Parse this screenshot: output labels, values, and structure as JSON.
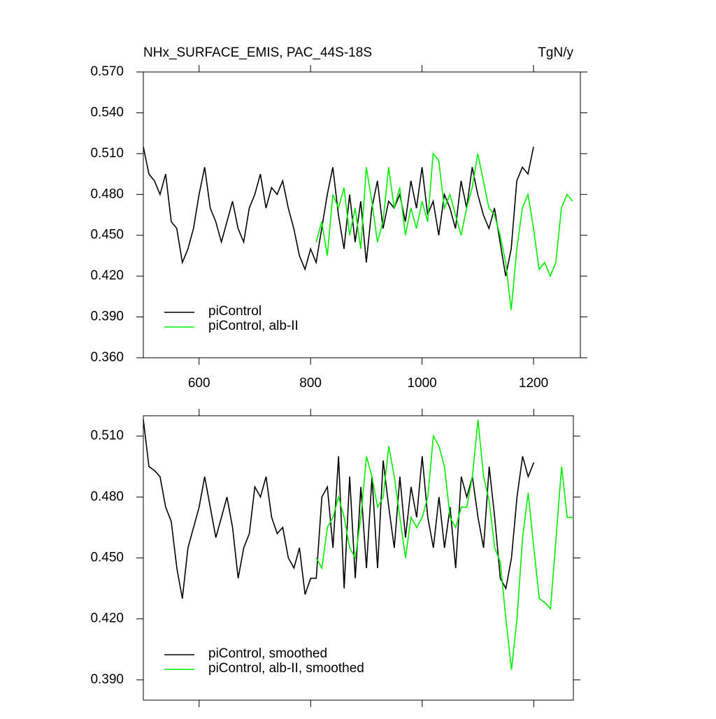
{
  "chart_data": [
    {
      "type": "line",
      "title": "NHx_SURFACE_EMIS, PAC_44S-18S",
      "units": "TgN/y",
      "xlim": [
        500,
        1284
      ],
      "xticks": [
        600,
        800,
        1000,
        1200
      ],
      "ylim": [
        0.36,
        0.57
      ],
      "yticks": [
        {
          "value": 0.36,
          "label": "0.360"
        },
        {
          "value": 0.39,
          "label": "0.390"
        },
        {
          "value": 0.42,
          "label": "0.420"
        },
        {
          "value": 0.45,
          "label": "0.450"
        },
        {
          "value": 0.48,
          "label": "0.480"
        },
        {
          "value": 0.51,
          "label": "0.510"
        },
        {
          "value": 0.54,
          "label": "0.540"
        },
        {
          "value": 0.57,
          "label": "0.570"
        }
      ],
      "legend": "lower left",
      "series": [
        {
          "name": "piControl",
          "color": "#000000",
          "x": [
            500,
            510,
            520,
            530,
            540,
            550,
            560,
            570,
            580,
            590,
            600,
            610,
            620,
            630,
            640,
            650,
            660,
            670,
            680,
            690,
            700,
            710,
            720,
            730,
            740,
            750,
            760,
            770,
            780,
            790,
            800,
            810,
            820,
            830,
            840,
            850,
            860,
            870,
            880,
            890,
            900,
            910,
            920,
            930,
            940,
            950,
            960,
            970,
            980,
            990,
            1000,
            1010,
            1020,
            1030,
            1040,
            1050,
            1060,
            1070,
            1080,
            1090,
            1100,
            1110,
            1120,
            1130,
            1140,
            1150,
            1160,
            1170,
            1180,
            1190,
            1200
          ],
          "values": [
            0.515,
            0.495,
            0.49,
            0.48,
            0.495,
            0.46,
            0.455,
            0.43,
            0.44,
            0.455,
            0.48,
            0.5,
            0.47,
            0.46,
            0.445,
            0.46,
            0.475,
            0.455,
            0.445,
            0.47,
            0.48,
            0.495,
            0.47,
            0.485,
            0.48,
            0.49,
            0.47,
            0.455,
            0.435,
            0.425,
            0.44,
            0.43,
            0.455,
            0.48,
            0.5,
            0.465,
            0.44,
            0.48,
            0.445,
            0.475,
            0.43,
            0.47,
            0.49,
            0.455,
            0.475,
            0.47,
            0.48,
            0.46,
            0.49,
            0.47,
            0.5,
            0.465,
            0.475,
            0.45,
            0.48,
            0.47,
            0.455,
            0.49,
            0.47,
            0.5,
            0.48,
            0.465,
            0.455,
            0.47,
            0.445,
            0.42,
            0.44,
            0.49,
            0.5,
            0.495,
            0.515
          ]
        },
        {
          "name": "piControl, alb-II",
          "color": "#00ee00",
          "x": [
            810,
            820,
            830,
            840,
            850,
            860,
            870,
            880,
            890,
            900,
            910,
            920,
            930,
            940,
            950,
            960,
            970,
            980,
            990,
            1000,
            1010,
            1020,
            1030,
            1040,
            1050,
            1060,
            1070,
            1080,
            1090,
            1100,
            1110,
            1120,
            1130,
            1140,
            1150,
            1160,
            1170,
            1180,
            1190,
            1200,
            1210,
            1220,
            1230,
            1240,
            1250,
            1260,
            1270
          ],
          "values": [
            0.445,
            0.46,
            0.435,
            0.48,
            0.47,
            0.485,
            0.45,
            0.47,
            0.44,
            0.5,
            0.475,
            0.445,
            0.46,
            0.5,
            0.47,
            0.485,
            0.45,
            0.47,
            0.455,
            0.475,
            0.46,
            0.51,
            0.505,
            0.47,
            0.48,
            0.465,
            0.45,
            0.47,
            0.485,
            0.51,
            0.49,
            0.47,
            0.465,
            0.45,
            0.43,
            0.395,
            0.44,
            0.47,
            0.48,
            0.455,
            0.425,
            0.43,
            0.42,
            0.43,
            0.47,
            0.48,
            0.475
          ]
        }
      ]
    },
    {
      "type": "line",
      "xlim": [
        500,
        1271
      ],
      "ylim": [
        0.38,
        0.52
      ],
      "yticks": [
        {
          "value": 0.39,
          "label": "0.390"
        },
        {
          "value": 0.42,
          "label": "0.420"
        },
        {
          "value": 0.45,
          "label": "0.450"
        },
        {
          "value": 0.48,
          "label": "0.480"
        },
        {
          "value": 0.51,
          "label": "0.510"
        }
      ],
      "legend": "lower left",
      "series": [
        {
          "name": "piControl, smoothed",
          "color": "#000000",
          "x": [
            500,
            510,
            520,
            530,
            540,
            550,
            560,
            570,
            580,
            590,
            600,
            610,
            620,
            630,
            640,
            650,
            660,
            670,
            680,
            690,
            700,
            710,
            720,
            730,
            740,
            750,
            760,
            770,
            780,
            790,
            800,
            810,
            820,
            830,
            840,
            850,
            860,
            870,
            880,
            890,
            900,
            910,
            920,
            930,
            940,
            950,
            960,
            970,
            980,
            990,
            1000,
            1010,
            1020,
            1030,
            1040,
            1050,
            1060,
            1070,
            1080,
            1090,
            1100,
            1110,
            1120,
            1130,
            1140,
            1150,
            1160,
            1170,
            1180,
            1190,
            1200
          ],
          "values": [
            0.518,
            0.495,
            0.493,
            0.49,
            0.475,
            0.468,
            0.445,
            0.43,
            0.455,
            0.465,
            0.475,
            0.49,
            0.475,
            0.46,
            0.47,
            0.48,
            0.465,
            0.44,
            0.455,
            0.462,
            0.485,
            0.48,
            0.49,
            0.47,
            0.462,
            0.465,
            0.45,
            0.445,
            0.455,
            0.432,
            0.44,
            0.44,
            0.48,
            0.485,
            0.455,
            0.5,
            0.435,
            0.49,
            0.44,
            0.485,
            0.445,
            0.49,
            0.445,
            0.498,
            0.475,
            0.455,
            0.49,
            0.46,
            0.485,
            0.47,
            0.5,
            0.47,
            0.455,
            0.48,
            0.455,
            0.475,
            0.445,
            0.49,
            0.48,
            0.49,
            0.47,
            0.455,
            0.495,
            0.47,
            0.44,
            0.435,
            0.45,
            0.48,
            0.5,
            0.49,
            0.497
          ]
        },
        {
          "name": "piControl, alb-II, smoothed",
          "color": "#00ee00",
          "x": [
            810,
            820,
            830,
            840,
            850,
            860,
            870,
            880,
            890,
            900,
            910,
            920,
            930,
            940,
            950,
            960,
            970,
            980,
            990,
            1000,
            1010,
            1020,
            1030,
            1040,
            1050,
            1060,
            1070,
            1080,
            1090,
            1100,
            1110,
            1120,
            1130,
            1140,
            1150,
            1160,
            1170,
            1180,
            1190,
            1200,
            1210,
            1220,
            1230,
            1240,
            1250,
            1260,
            1270
          ],
          "values": [
            0.45,
            0.445,
            0.465,
            0.47,
            0.48,
            0.47,
            0.455,
            0.45,
            0.47,
            0.5,
            0.49,
            0.475,
            0.48,
            0.505,
            0.49,
            0.47,
            0.45,
            0.47,
            0.465,
            0.47,
            0.48,
            0.51,
            0.505,
            0.495,
            0.47,
            0.465,
            0.475,
            0.475,
            0.49,
            0.518,
            0.49,
            0.478,
            0.455,
            0.448,
            0.42,
            0.395,
            0.42,
            0.46,
            0.482,
            0.455,
            0.43,
            0.428,
            0.425,
            0.46,
            0.495,
            0.47,
            0.47
          ]
        }
      ]
    }
  ]
}
